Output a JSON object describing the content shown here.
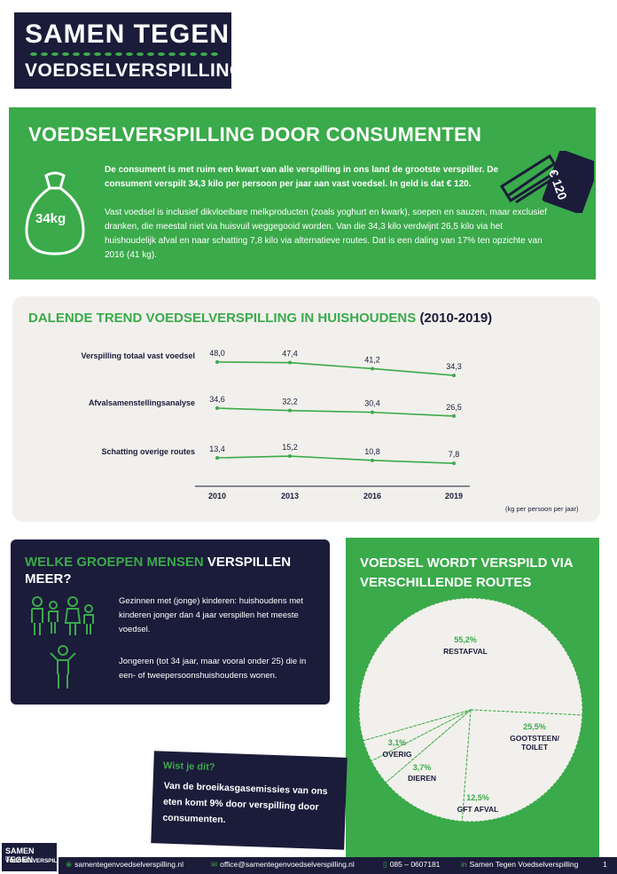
{
  "logo": {
    "line1": "SAMEN TEGEN",
    "line2": "VOEDSELVERSPILLING"
  },
  "consumer": {
    "title": "VOEDSELVERSPILLING DOOR CONSUMENTEN",
    "bag_label": "34kg",
    "money_label": "€ 120",
    "paragraph1": "De consument is met ruim een kwart van alle verspilling in ons land de grootste verspiller. De consument verspilt 34,3 kilo per persoon per jaar aan vast voedsel. In geld is dat € 120.",
    "paragraph2": "Vast voedsel is inclusief dikvloeibare melkproducten (zoals yoghurt en kwark), soepen en sauzen, maar exclusief dranken, die meestal niet via huisvuil weggegooid worden. Van die 34,3 kilo verdwijnt 26,5 kilo via het huishoudelijk afval en naar schatting 7,8 kilo via alternatieve routes. Dat is een daling van 17% ten opzichte van 2016 (41 kg)."
  },
  "trend": {
    "title_green": "DALENDE TREND VOEDSELVERSPILLING IN HUISHOUDENS",
    "title_dark": "(2010-2019)",
    "unit_note": "(kg per persoon per jaar)"
  },
  "chart_data": {
    "type": "line",
    "x": [
      "2010",
      "2013",
      "2016",
      "2019"
    ],
    "series": [
      {
        "name": "Verspilling totaal vast voedsel",
        "values": [
          48.0,
          47.4,
          41.2,
          34.3
        ],
        "labels": [
          "48,0",
          "47,4",
          "41,2",
          "34,3"
        ]
      },
      {
        "name": "Afvalsamenstellingsanalyse",
        "values": [
          34.6,
          32.2,
          30.4,
          26.5
        ],
        "labels": [
          "34,6",
          "32,2",
          "30,4",
          "26,5"
        ]
      },
      {
        "name": "Schatting overige routes",
        "values": [
          13.4,
          15.2,
          10.8,
          7.8
        ],
        "labels": [
          "13,4",
          "15,2",
          "10,8",
          "7,8"
        ]
      }
    ],
    "color": "#3aaa4a"
  },
  "groups": {
    "title_green": "WELKE GROEPEN MENSEN",
    "title_rest": "VERSPILLEN MEER?",
    "item1": "Gezinnen met (jonge) kinderen: huishoudens met kinderen jonger dan 4 jaar verspillen het meeste voedsel.",
    "item2": "Jongeren (tot 34 jaar, maar vooral onder 25) die in een- of tweepersoonshuishoudens wonen."
  },
  "routes": {
    "title": "VOEDSEL WORDT VERSPILD VIA VERSCHILLENDE ROUTES",
    "slices": [
      {
        "pct": "55,2%",
        "label": "RESTAFVAL",
        "value": 55.2
      },
      {
        "pct": "25,5%",
        "label": "GOOTSTEEN/ TOILET",
        "value": 25.5
      },
      {
        "pct": "12,5%",
        "label": "GFT AFVAL",
        "value": 12.5
      },
      {
        "pct": "3,7%",
        "label": "DIEREN",
        "value": 3.7
      },
      {
        "pct": "3,1%",
        "label": "OVERIG",
        "value": 3.1
      }
    ]
  },
  "wist": {
    "title": "Wist je dit?",
    "body": "Van de broeikasgasemissies van ons eten komt 9% door verspilling door consumenten."
  },
  "footer": {
    "logo1": "SAMEN TEGEN",
    "logo2": "VOEDSELVERSPILLING",
    "website": "samentegenvoedselverspilling.nl",
    "email": "office@samentegenvoedselverspilling.nl",
    "phone": "085 – 0607181",
    "linkedin": "Samen Tegen Voedselverspilling",
    "page": "1"
  },
  "colors": {
    "green": "#3aaa4a",
    "navy": "#1b1b3a",
    "cream": "#f2f0ec"
  }
}
